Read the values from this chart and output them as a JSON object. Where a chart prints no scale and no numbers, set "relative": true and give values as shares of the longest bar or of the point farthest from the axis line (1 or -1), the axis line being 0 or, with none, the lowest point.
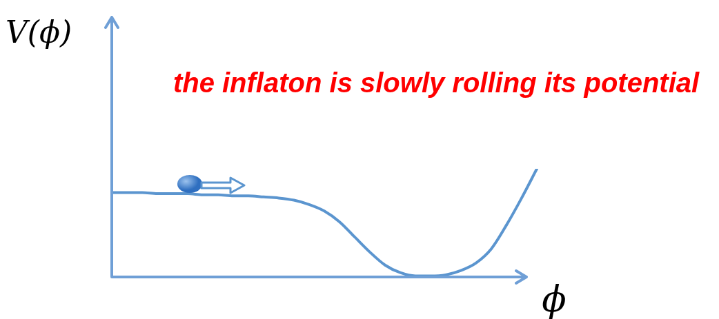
{
  "chart_data": {
    "type": "line",
    "relative": true,
    "title": "the inflaton is slowly rolling its potential",
    "xlabel": "ϕ",
    "ylabel": "V(ϕ)",
    "categories": [
      null,
      null,
      null,
      null,
      null,
      null,
      null,
      null,
      null,
      null,
      null,
      null,
      null,
      null,
      null,
      null,
      null,
      null,
      null,
      null,
      null,
      null,
      null,
      null,
      null,
      null,
      null,
      null,
      null
    ],
    "series": [
      {
        "color": "#5b95cf",
        "values": [
          0.78,
          0.78,
          0.78,
          0.77,
          0.77,
          0.77,
          0.76,
          0.76,
          0.75,
          0.75,
          0.74,
          0.73,
          0.71,
          0.67,
          0.61,
          0.51,
          0.37,
          0.23,
          0.11,
          0.04,
          0.01,
          0.01,
          0.02,
          0.06,
          0.13,
          0.26,
          0.48,
          0.73,
          1
        ]
      }
    ],
    "grid": false,
    "legend": false,
    "marker": "none",
    "line_style": "solid"
  }
}
